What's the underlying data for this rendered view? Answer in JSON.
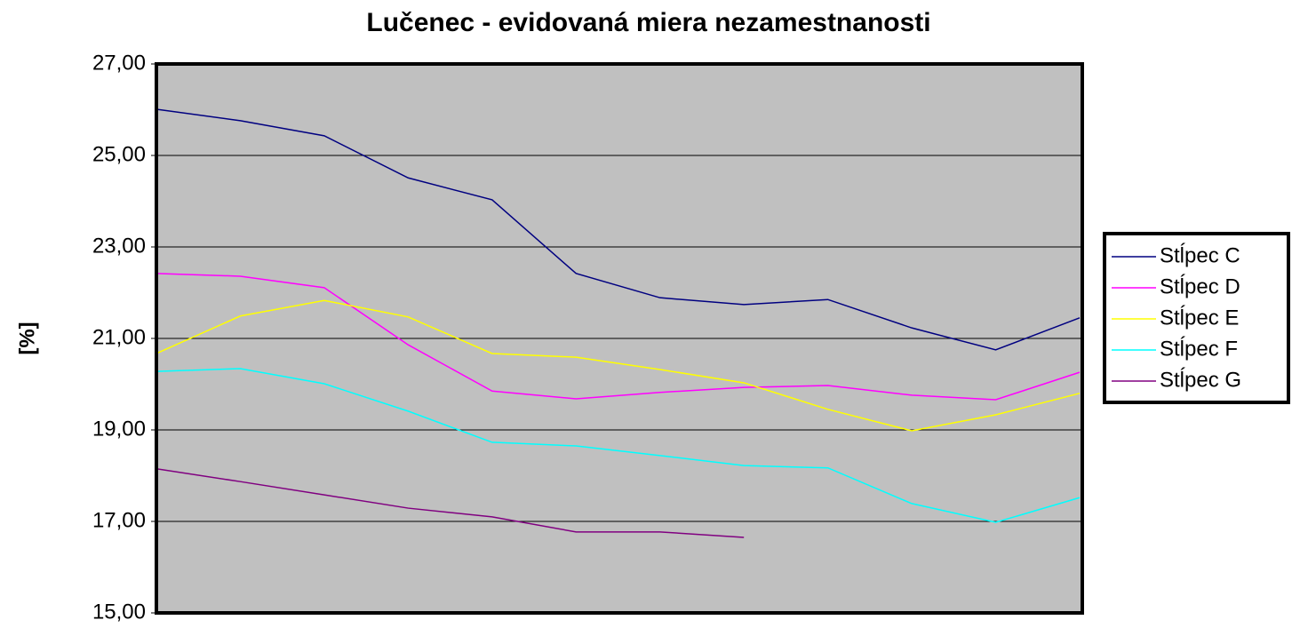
{
  "chart_data": {
    "type": "line",
    "title": "Lučenec - evidovaná miera nezamestnanosti",
    "y_label": "[%]",
    "categories": [
      null,
      null,
      null,
      null,
      null,
      null,
      null,
      null,
      null,
      null,
      null,
      null
    ],
    "series": [
      {
        "name": "Stĺpec C",
        "color": "#000080",
        "values": [
          26.01,
          25.76,
          25.43,
          24.51,
          24.03,
          22.42,
          21.89,
          21.74,
          21.85,
          21.23,
          20.75,
          21.45
        ]
      },
      {
        "name": "Stĺpec D",
        "color": "#ff00ff",
        "values": [
          22.42,
          22.36,
          22.11,
          20.86,
          19.85,
          19.68,
          19.82,
          19.93,
          19.97,
          19.76,
          19.66,
          20.26
        ]
      },
      {
        "name": "Stĺpec E",
        "color": "#ffff00",
        "values": [
          20.67,
          21.49,
          21.83,
          21.47,
          20.67,
          20.59,
          20.32,
          20.03,
          19.45,
          18.98,
          19.33,
          19.8
        ]
      },
      {
        "name": "Stĺpec F",
        "color": "#00ffff",
        "values": [
          20.28,
          20.34,
          20.01,
          19.41,
          18.73,
          18.65,
          18.44,
          18.22,
          18.17,
          17.39,
          16.98,
          17.52
        ]
      },
      {
        "name": "Stĺpec G",
        "color": "#800080",
        "values": [
          18.15,
          17.87,
          17.58,
          17.29,
          17.1,
          16.77,
          16.77,
          16.65,
          null,
          null,
          null,
          null
        ]
      }
    ],
    "ylim": [
      15,
      27
    ],
    "yticks": [
      {
        "value": 15,
        "label": "15,00"
      },
      {
        "value": 17,
        "label": "17,00"
      },
      {
        "value": 19,
        "label": "19,00"
      },
      {
        "value": 21,
        "label": "21,00"
      },
      {
        "value": 23,
        "label": "23,00"
      },
      {
        "value": 25,
        "label": "25,00"
      },
      {
        "value": 27,
        "label": "27,00"
      }
    ],
    "grid": true,
    "legend": "right"
  }
}
